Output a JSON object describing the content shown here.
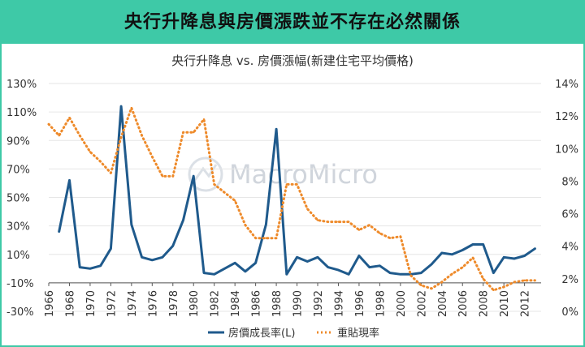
{
  "header": {
    "title": "央行升降息與房價漲跌並不存在必然關係"
  },
  "watermark": "MacroMicro",
  "colors": {
    "header_bg": "#3ec9a7",
    "left_series": "#1f5a8c",
    "right_series": "#ee8a2a"
  },
  "chart_data": {
    "type": "line",
    "title": "央行升降息 vs. 房價漲幅(新建住宅平均價格)",
    "x_ticks": [
      "1966",
      "1968",
      "1970",
      "1972",
      "1974",
      "1976",
      "1978",
      "1980",
      "1982",
      "1984",
      "1986",
      "1988",
      "1990",
      "1992",
      "1994",
      "1996",
      "1998",
      "2000",
      "2002",
      "2004",
      "2006",
      "2008",
      "2010",
      "2012"
    ],
    "y_left": {
      "ticks": [
        "130%",
        "110%",
        "90%",
        "70%",
        "50%",
        "30%",
        "10%",
        "-10%",
        "-30%"
      ],
      "min": -30,
      "max": 130
    },
    "y_right": {
      "ticks": [
        "14%",
        "12%",
        "10%",
        "8%",
        "6%",
        "4%",
        "2%",
        "0%"
      ],
      "min": 0,
      "max": 14
    },
    "legend": {
      "position": "bottom",
      "items": [
        "房價成長率(L)",
        "重貼現率"
      ]
    },
    "series": [
      {
        "name": "房價成長率(L)",
        "axis": "left",
        "style": "solid",
        "x": [
          1967,
          1968,
          1969,
          1970,
          1971,
          1972,
          1973,
          1974,
          1975,
          1976,
          1977,
          1978,
          1979,
          1980,
          1981,
          1982,
          1983,
          1984,
          1985,
          1986,
          1987,
          1988,
          1989,
          1990,
          1991,
          1992,
          1993,
          1994,
          1995,
          1996,
          1997,
          1998,
          1999,
          2000,
          2001,
          2002,
          2003,
          2004,
          2005,
          2006,
          2007,
          2008,
          2009,
          2010,
          2011,
          2012,
          2013
        ],
        "values": [
          26,
          62,
          1,
          0,
          2,
          14,
          114,
          31,
          8,
          6,
          8,
          16,
          34,
          65,
          -3,
          -4,
          0,
          4,
          -2,
          4,
          31,
          98,
          -4,
          8,
          5,
          8,
          1,
          -1,
          -4,
          9,
          1,
          2,
          -3,
          -4,
          -4,
          -3,
          3,
          11,
          10,
          13,
          17,
          17,
          -3,
          8,
          7,
          9,
          14
        ]
      },
      {
        "name": "重貼現率",
        "axis": "right",
        "style": "dotted",
        "x": [
          1966,
          1967,
          1968,
          1969,
          1970,
          1971,
          1972,
          1973,
          1974,
          1975,
          1976,
          1977,
          1978,
          1979,
          1980,
          1981,
          1982,
          1983,
          1984,
          1985,
          1986,
          1987,
          1988,
          1989,
          1990,
          1991,
          1992,
          1993,
          1994,
          1995,
          1996,
          1997,
          1998,
          1999,
          2000,
          2001,
          2002,
          2003,
          2004,
          2005,
          2006,
          2007,
          2008,
          2009,
          2010,
          2011,
          2012,
          2013
        ],
        "values": [
          11.5,
          10.8,
          11.9,
          10.8,
          9.8,
          9.2,
          8.5,
          10.7,
          12.5,
          10.8,
          9.5,
          8.3,
          8.3,
          11.0,
          11.0,
          11.8,
          7.8,
          7.3,
          6.8,
          5.3,
          4.5,
          4.5,
          4.5,
          7.8,
          7.8,
          6.3,
          5.6,
          5.5,
          5.5,
          5.5,
          5.0,
          5.3,
          4.8,
          4.5,
          4.6,
          2.2,
          1.6,
          1.4,
          1.8,
          2.3,
          2.7,
          3.3,
          2.0,
          1.3,
          1.5,
          1.8,
          1.9,
          1.9
        ]
      }
    ]
  }
}
